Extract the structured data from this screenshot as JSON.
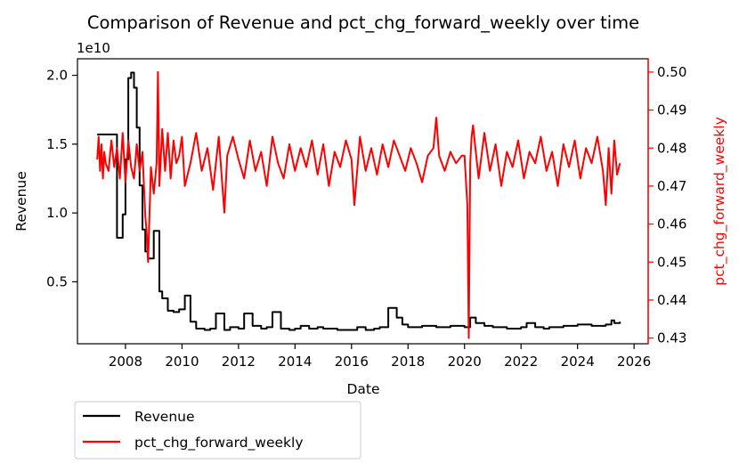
{
  "chart_data": {
    "type": "line",
    "title": "Comparison of Revenue and pct_chg_forward_weekly over time",
    "xlabel": "Date",
    "x_ticks": [
      "2008",
      "2010",
      "2012",
      "2014",
      "2016",
      "2018",
      "2020",
      "2022",
      "2024",
      "2026"
    ],
    "xlim": [
      2006.3,
      2026.5
    ],
    "grid": false,
    "legend_placement": "below-left",
    "left_axis": {
      "label": "Revenue",
      "offset_label": "1e10",
      "ylim": [
        0.05,
        2.12
      ],
      "ticks": [
        "0.5",
        "1.0",
        "1.5",
        "2.0"
      ],
      "color": "#000000"
    },
    "right_axis": {
      "label": "pct_chg_forward_weekly",
      "ylim": [
        0.4285,
        0.5035
      ],
      "ticks": [
        "0.43",
        "0.44",
        "0.45",
        "0.46",
        "0.47",
        "0.48",
        "0.49",
        "0.50"
      ],
      "color": "#ff0000"
    },
    "series": [
      {
        "name": "Revenue",
        "axis": "left",
        "color": "#000000",
        "step": true,
        "x": [
          2007.0,
          2007.6,
          2007.7,
          2007.9,
          2008.0,
          2008.1,
          2008.2,
          2008.3,
          2008.4,
          2008.5,
          2008.6,
          2008.7,
          2008.8,
          2009.0,
          2009.2,
          2009.3,
          2009.5,
          2009.7,
          2009.9,
          2010.1,
          2010.3,
          2010.5,
          2010.8,
          2011.0,
          2011.2,
          2011.5,
          2011.7,
          2012.0,
          2012.2,
          2012.5,
          2012.8,
          2013.0,
          2013.2,
          2013.5,
          2013.8,
          2014.0,
          2014.2,
          2014.5,
          2014.8,
          2015.0,
          2015.5,
          2016.0,
          2016.2,
          2016.5,
          2016.8,
          2017.0,
          2017.3,
          2017.6,
          2017.8,
          2018.0,
          2018.5,
          2019.0,
          2019.5,
          2020.0,
          2020.2,
          2020.4,
          2020.7,
          2021.0,
          2021.5,
          2022.0,
          2022.2,
          2022.5,
          2022.8,
          2023.0,
          2023.5,
          2024.0,
          2024.5,
          2025.0,
          2025.2,
          2025.3,
          2025.5
        ],
        "values": [
          1.57,
          1.57,
          0.82,
          0.99,
          1.39,
          1.98,
          2.02,
          1.91,
          1.62,
          1.2,
          0.88,
          0.72,
          0.67,
          0.87,
          0.43,
          0.38,
          0.29,
          0.28,
          0.3,
          0.4,
          0.21,
          0.16,
          0.15,
          0.16,
          0.27,
          0.15,
          0.17,
          0.16,
          0.27,
          0.18,
          0.16,
          0.17,
          0.28,
          0.16,
          0.15,
          0.16,
          0.18,
          0.16,
          0.17,
          0.16,
          0.15,
          0.15,
          0.17,
          0.15,
          0.16,
          0.17,
          0.31,
          0.24,
          0.19,
          0.17,
          0.18,
          0.17,
          0.18,
          0.17,
          0.24,
          0.2,
          0.18,
          0.17,
          0.16,
          0.17,
          0.2,
          0.17,
          0.16,
          0.17,
          0.18,
          0.19,
          0.18,
          0.19,
          0.22,
          0.2,
          0.21
        ]
      },
      {
        "name": "pct_chg_forward_weekly",
        "axis": "right",
        "color": "#ff0000",
        "step": false,
        "x": [
          2007.0,
          2007.05,
          2007.1,
          2007.15,
          2007.2,
          2007.25,
          2007.3,
          2007.4,
          2007.5,
          2007.6,
          2007.7,
          2007.8,
          2007.9,
          2008.0,
          2008.1,
          2008.2,
          2008.3,
          2008.4,
          2008.5,
          2008.6,
          2008.7,
          2008.75,
          2008.8,
          2008.9,
          2009.0,
          2009.1,
          2009.15,
          2009.2,
          2009.3,
          2009.4,
          2009.5,
          2009.6,
          2009.7,
          2009.8,
          2009.9,
          2010.0,
          2010.1,
          2010.3,
          2010.5,
          2010.7,
          2010.9,
          2011.1,
          2011.3,
          2011.5,
          2011.6,
          2011.8,
          2012.0,
          2012.2,
          2012.4,
          2012.6,
          2012.8,
          2013.0,
          2013.2,
          2013.4,
          2013.6,
          2013.8,
          2014.0,
          2014.2,
          2014.4,
          2014.6,
          2014.8,
          2015.0,
          2015.2,
          2015.4,
          2015.6,
          2015.8,
          2016.0,
          2016.1,
          2016.3,
          2016.5,
          2016.7,
          2016.9,
          2017.1,
          2017.3,
          2017.5,
          2017.7,
          2017.9,
          2018.1,
          2018.3,
          2018.5,
          2018.7,
          2018.9,
          2019.0,
          2019.1,
          2019.3,
          2019.5,
          2019.7,
          2019.9,
          2020.0,
          2020.1,
          2020.15,
          2020.2,
          2020.25,
          2020.3,
          2020.4,
          2020.5,
          2020.7,
          2020.9,
          2021.1,
          2021.3,
          2021.5,
          2021.7,
          2021.9,
          2022.1,
          2022.3,
          2022.5,
          2022.7,
          2022.9,
          2023.1,
          2023.3,
          2023.5,
          2023.7,
          2023.9,
          2024.1,
          2024.3,
          2024.5,
          2024.7,
          2024.9,
          2025.0,
          2025.1,
          2025.2,
          2025.3,
          2025.4,
          2025.5
        ],
        "values": [
          0.477,
          0.483,
          0.474,
          0.481,
          0.472,
          0.479,
          0.476,
          0.474,
          0.482,
          0.475,
          0.48,
          0.472,
          0.484,
          0.471,
          0.482,
          0.475,
          0.472,
          0.481,
          0.474,
          0.479,
          0.462,
          0.458,
          0.45,
          0.475,
          0.468,
          0.476,
          0.5,
          0.47,
          0.485,
          0.474,
          0.484,
          0.472,
          0.482,
          0.476,
          0.478,
          0.483,
          0.47,
          0.476,
          0.484,
          0.474,
          0.48,
          0.469,
          0.483,
          0.463,
          0.478,
          0.483,
          0.477,
          0.472,
          0.482,
          0.474,
          0.479,
          0.47,
          0.483,
          0.476,
          0.472,
          0.481,
          0.474,
          0.48,
          0.475,
          0.482,
          0.473,
          0.481,
          0.47,
          0.479,
          0.475,
          0.482,
          0.477,
          0.465,
          0.483,
          0.474,
          0.48,
          0.473,
          0.481,
          0.475,
          0.482,
          0.478,
          0.474,
          0.48,
          0.476,
          0.471,
          0.478,
          0.48,
          0.488,
          0.478,
          0.474,
          0.479,
          0.476,
          0.478,
          0.478,
          0.465,
          0.43,
          0.476,
          0.483,
          0.486,
          0.479,
          0.472,
          0.484,
          0.474,
          0.481,
          0.47,
          0.479,
          0.475,
          0.482,
          0.472,
          0.479,
          0.476,
          0.483,
          0.474,
          0.479,
          0.47,
          0.481,
          0.475,
          0.482,
          0.472,
          0.48,
          0.476,
          0.483,
          0.474,
          0.465,
          0.48,
          0.468,
          0.482,
          0.473,
          0.476
        ]
      }
    ]
  }
}
